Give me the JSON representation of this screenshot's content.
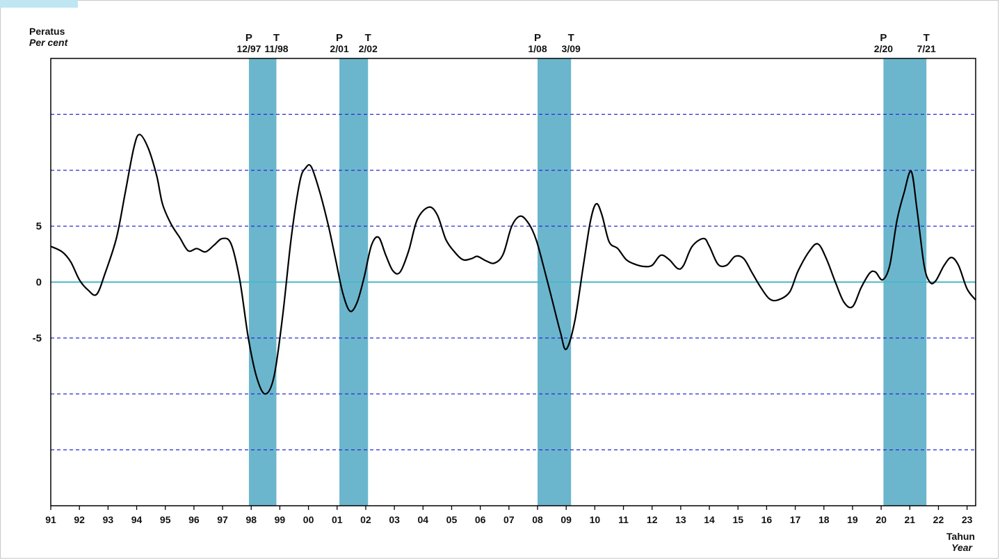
{
  "chart_data": {
    "type": "line",
    "ylabel": "Peratus",
    "ylabel_en": "Per cent",
    "xlabel": "Tahun",
    "xlabel_en": "Year",
    "ylim": [
      -20,
      20
    ],
    "xlim": [
      1991,
      2023.3
    ],
    "y_ticks": [
      {
        "value": 5,
        "label": "5"
      },
      {
        "value": 0,
        "label": "0"
      },
      {
        "value": -5,
        "label": "-5"
      }
    ],
    "gridlines": [
      15,
      10,
      5,
      -5,
      -10,
      -15
    ],
    "x_ticks": [
      {
        "value": 1991,
        "label": "91"
      },
      {
        "value": 1992,
        "label": "92"
      },
      {
        "value": 1993,
        "label": "93"
      },
      {
        "value": 1994,
        "label": "94"
      },
      {
        "value": 1995,
        "label": "95"
      },
      {
        "value": 1996,
        "label": "96"
      },
      {
        "value": 1997,
        "label": "97"
      },
      {
        "value": 1998,
        "label": "98"
      },
      {
        "value": 1999,
        "label": "99"
      },
      {
        "value": 2000,
        "label": "00"
      },
      {
        "value": 2001,
        "label": "01"
      },
      {
        "value": 2002,
        "label": "02"
      },
      {
        "value": 2003,
        "label": "03"
      },
      {
        "value": 2004,
        "label": "04"
      },
      {
        "value": 2005,
        "label": "05"
      },
      {
        "value": 2006,
        "label": "06"
      },
      {
        "value": 2007,
        "label": "07"
      },
      {
        "value": 2008,
        "label": "08"
      },
      {
        "value": 2009,
        "label": "09"
      },
      {
        "value": 2010,
        "label": "10"
      },
      {
        "value": 2011,
        "label": "11"
      },
      {
        "value": 2012,
        "label": "12"
      },
      {
        "value": 2013,
        "label": "13"
      },
      {
        "value": 2014,
        "label": "14"
      },
      {
        "value": 2015,
        "label": "15"
      },
      {
        "value": 2016,
        "label": "16"
      },
      {
        "value": 2017,
        "label": "17"
      },
      {
        "value": 2018,
        "label": "18"
      },
      {
        "value": 2019,
        "label": "19"
      },
      {
        "value": 2020,
        "label": "20"
      },
      {
        "value": 2021,
        "label": "21"
      },
      {
        "value": 2022,
        "label": "22"
      },
      {
        "value": 2023,
        "label": "23"
      }
    ],
    "recessions": [
      {
        "start": 1997.92,
        "end": 1998.88,
        "peak_label": "12/97",
        "trough_label": "11/98"
      },
      {
        "start": 2001.08,
        "end": 2002.08,
        "peak_label": "2/01",
        "trough_label": "2/02"
      },
      {
        "start": 2008.0,
        "end": 2009.17,
        "peak_label": "1/08",
        "trough_label": "3/09"
      },
      {
        "start": 2020.08,
        "end": 2021.58,
        "peak_label": "2/20",
        "trough_label": "7/21"
      }
    ],
    "peak_marker": "P",
    "trough_marker": "T",
    "series": [
      {
        "line_color": "#000000",
        "points": [
          [
            1991.0,
            3.2
          ],
          [
            1991.4,
            2.7
          ],
          [
            1991.7,
            1.8
          ],
          [
            1992.0,
            0.2
          ],
          [
            1992.3,
            -0.7
          ],
          [
            1992.6,
            -1.1
          ],
          [
            1992.9,
            0.8
          ],
          [
            1993.3,
            4.0
          ],
          [
            1993.6,
            8.0
          ],
          [
            1993.9,
            12.0
          ],
          [
            1994.1,
            13.2
          ],
          [
            1994.4,
            12.0
          ],
          [
            1994.7,
            9.5
          ],
          [
            1994.9,
            7.0
          ],
          [
            1995.2,
            5.2
          ],
          [
            1995.5,
            4.0
          ],
          [
            1995.8,
            2.8
          ],
          [
            1996.1,
            3.0
          ],
          [
            1996.4,
            2.7
          ],
          [
            1996.7,
            3.3
          ],
          [
            1997.0,
            3.9
          ],
          [
            1997.3,
            3.4
          ],
          [
            1997.6,
            0.2
          ],
          [
            1997.9,
            -5.0
          ],
          [
            1998.2,
            -8.6
          ],
          [
            1998.5,
            -10.0
          ],
          [
            1998.8,
            -8.4
          ],
          [
            1999.1,
            -3.0
          ],
          [
            1999.4,
            4.0
          ],
          [
            1999.7,
            9.0
          ],
          [
            1999.9,
            10.2
          ],
          [
            2000.1,
            10.3
          ],
          [
            2000.4,
            8.0
          ],
          [
            2000.7,
            5.0
          ],
          [
            2000.95,
            2.0
          ],
          [
            2001.2,
            -1.0
          ],
          [
            2001.45,
            -2.6
          ],
          [
            2001.7,
            -1.8
          ],
          [
            2001.95,
            0.5
          ],
          [
            2002.2,
            3.3
          ],
          [
            2002.45,
            4.0
          ],
          [
            2002.7,
            2.4
          ],
          [
            2002.95,
            1.0
          ],
          [
            2003.2,
            0.9
          ],
          [
            2003.5,
            2.8
          ],
          [
            2003.8,
            5.6
          ],
          [
            2004.2,
            6.7
          ],
          [
            2004.5,
            6.0
          ],
          [
            2004.8,
            3.8
          ],
          [
            2005.1,
            2.7
          ],
          [
            2005.4,
            2.0
          ],
          [
            2005.7,
            2.1
          ],
          [
            2005.9,
            2.3
          ],
          [
            2006.2,
            1.9
          ],
          [
            2006.5,
            1.7
          ],
          [
            2006.8,
            2.5
          ],
          [
            2007.1,
            5.0
          ],
          [
            2007.4,
            5.9
          ],
          [
            2007.7,
            5.2
          ],
          [
            2007.95,
            3.8
          ],
          [
            2008.2,
            1.5
          ],
          [
            2008.5,
            -1.5
          ],
          [
            2008.8,
            -4.5
          ],
          [
            2009.0,
            -6.0
          ],
          [
            2009.3,
            -3.5
          ],
          [
            2009.6,
            1.5
          ],
          [
            2009.85,
            5.5
          ],
          [
            2010.05,
            7.0
          ],
          [
            2010.25,
            6.0
          ],
          [
            2010.5,
            3.6
          ],
          [
            2010.8,
            3.0
          ],
          [
            2011.1,
            2.0
          ],
          [
            2011.4,
            1.6
          ],
          [
            2011.7,
            1.4
          ],
          [
            2012.0,
            1.5
          ],
          [
            2012.3,
            2.4
          ],
          [
            2012.6,
            2.0
          ],
          [
            2012.9,
            1.2
          ],
          [
            2013.1,
            1.5
          ],
          [
            2013.4,
            3.2
          ],
          [
            2013.8,
            3.9
          ],
          [
            2014.0,
            3.2
          ],
          [
            2014.3,
            1.6
          ],
          [
            2014.6,
            1.5
          ],
          [
            2014.9,
            2.3
          ],
          [
            2015.2,
            2.1
          ],
          [
            2015.5,
            0.8
          ],
          [
            2015.8,
            -0.5
          ],
          [
            2016.1,
            -1.5
          ],
          [
            2016.4,
            -1.6
          ],
          [
            2016.8,
            -0.9
          ],
          [
            2017.1,
            1.0
          ],
          [
            2017.5,
            2.8
          ],
          [
            2017.8,
            3.4
          ],
          [
            2018.1,
            2.0
          ],
          [
            2018.4,
            0.0
          ],
          [
            2018.7,
            -1.8
          ],
          [
            2019.0,
            -2.2
          ],
          [
            2019.3,
            -0.5
          ],
          [
            2019.6,
            0.8
          ],
          [
            2019.8,
            0.9
          ],
          [
            2020.05,
            0.2
          ],
          [
            2020.3,
            1.5
          ],
          [
            2020.55,
            5.5
          ],
          [
            2020.8,
            8.0
          ],
          [
            2021.05,
            9.9
          ],
          [
            2021.25,
            6.5
          ],
          [
            2021.5,
            1.5
          ],
          [
            2021.7,
            0.0
          ],
          [
            2021.9,
            0.1
          ],
          [
            2022.2,
            1.5
          ],
          [
            2022.45,
            2.2
          ],
          [
            2022.7,
            1.5
          ],
          [
            2023.0,
            -0.6
          ],
          [
            2023.3,
            -1.6
          ]
        ]
      }
    ],
    "colors": {
      "recession_band": "#6bb6cd",
      "zero_line": "#4bb5c8",
      "grid": "#2a2ad6",
      "series": "#000000",
      "axes": "#000000"
    }
  }
}
